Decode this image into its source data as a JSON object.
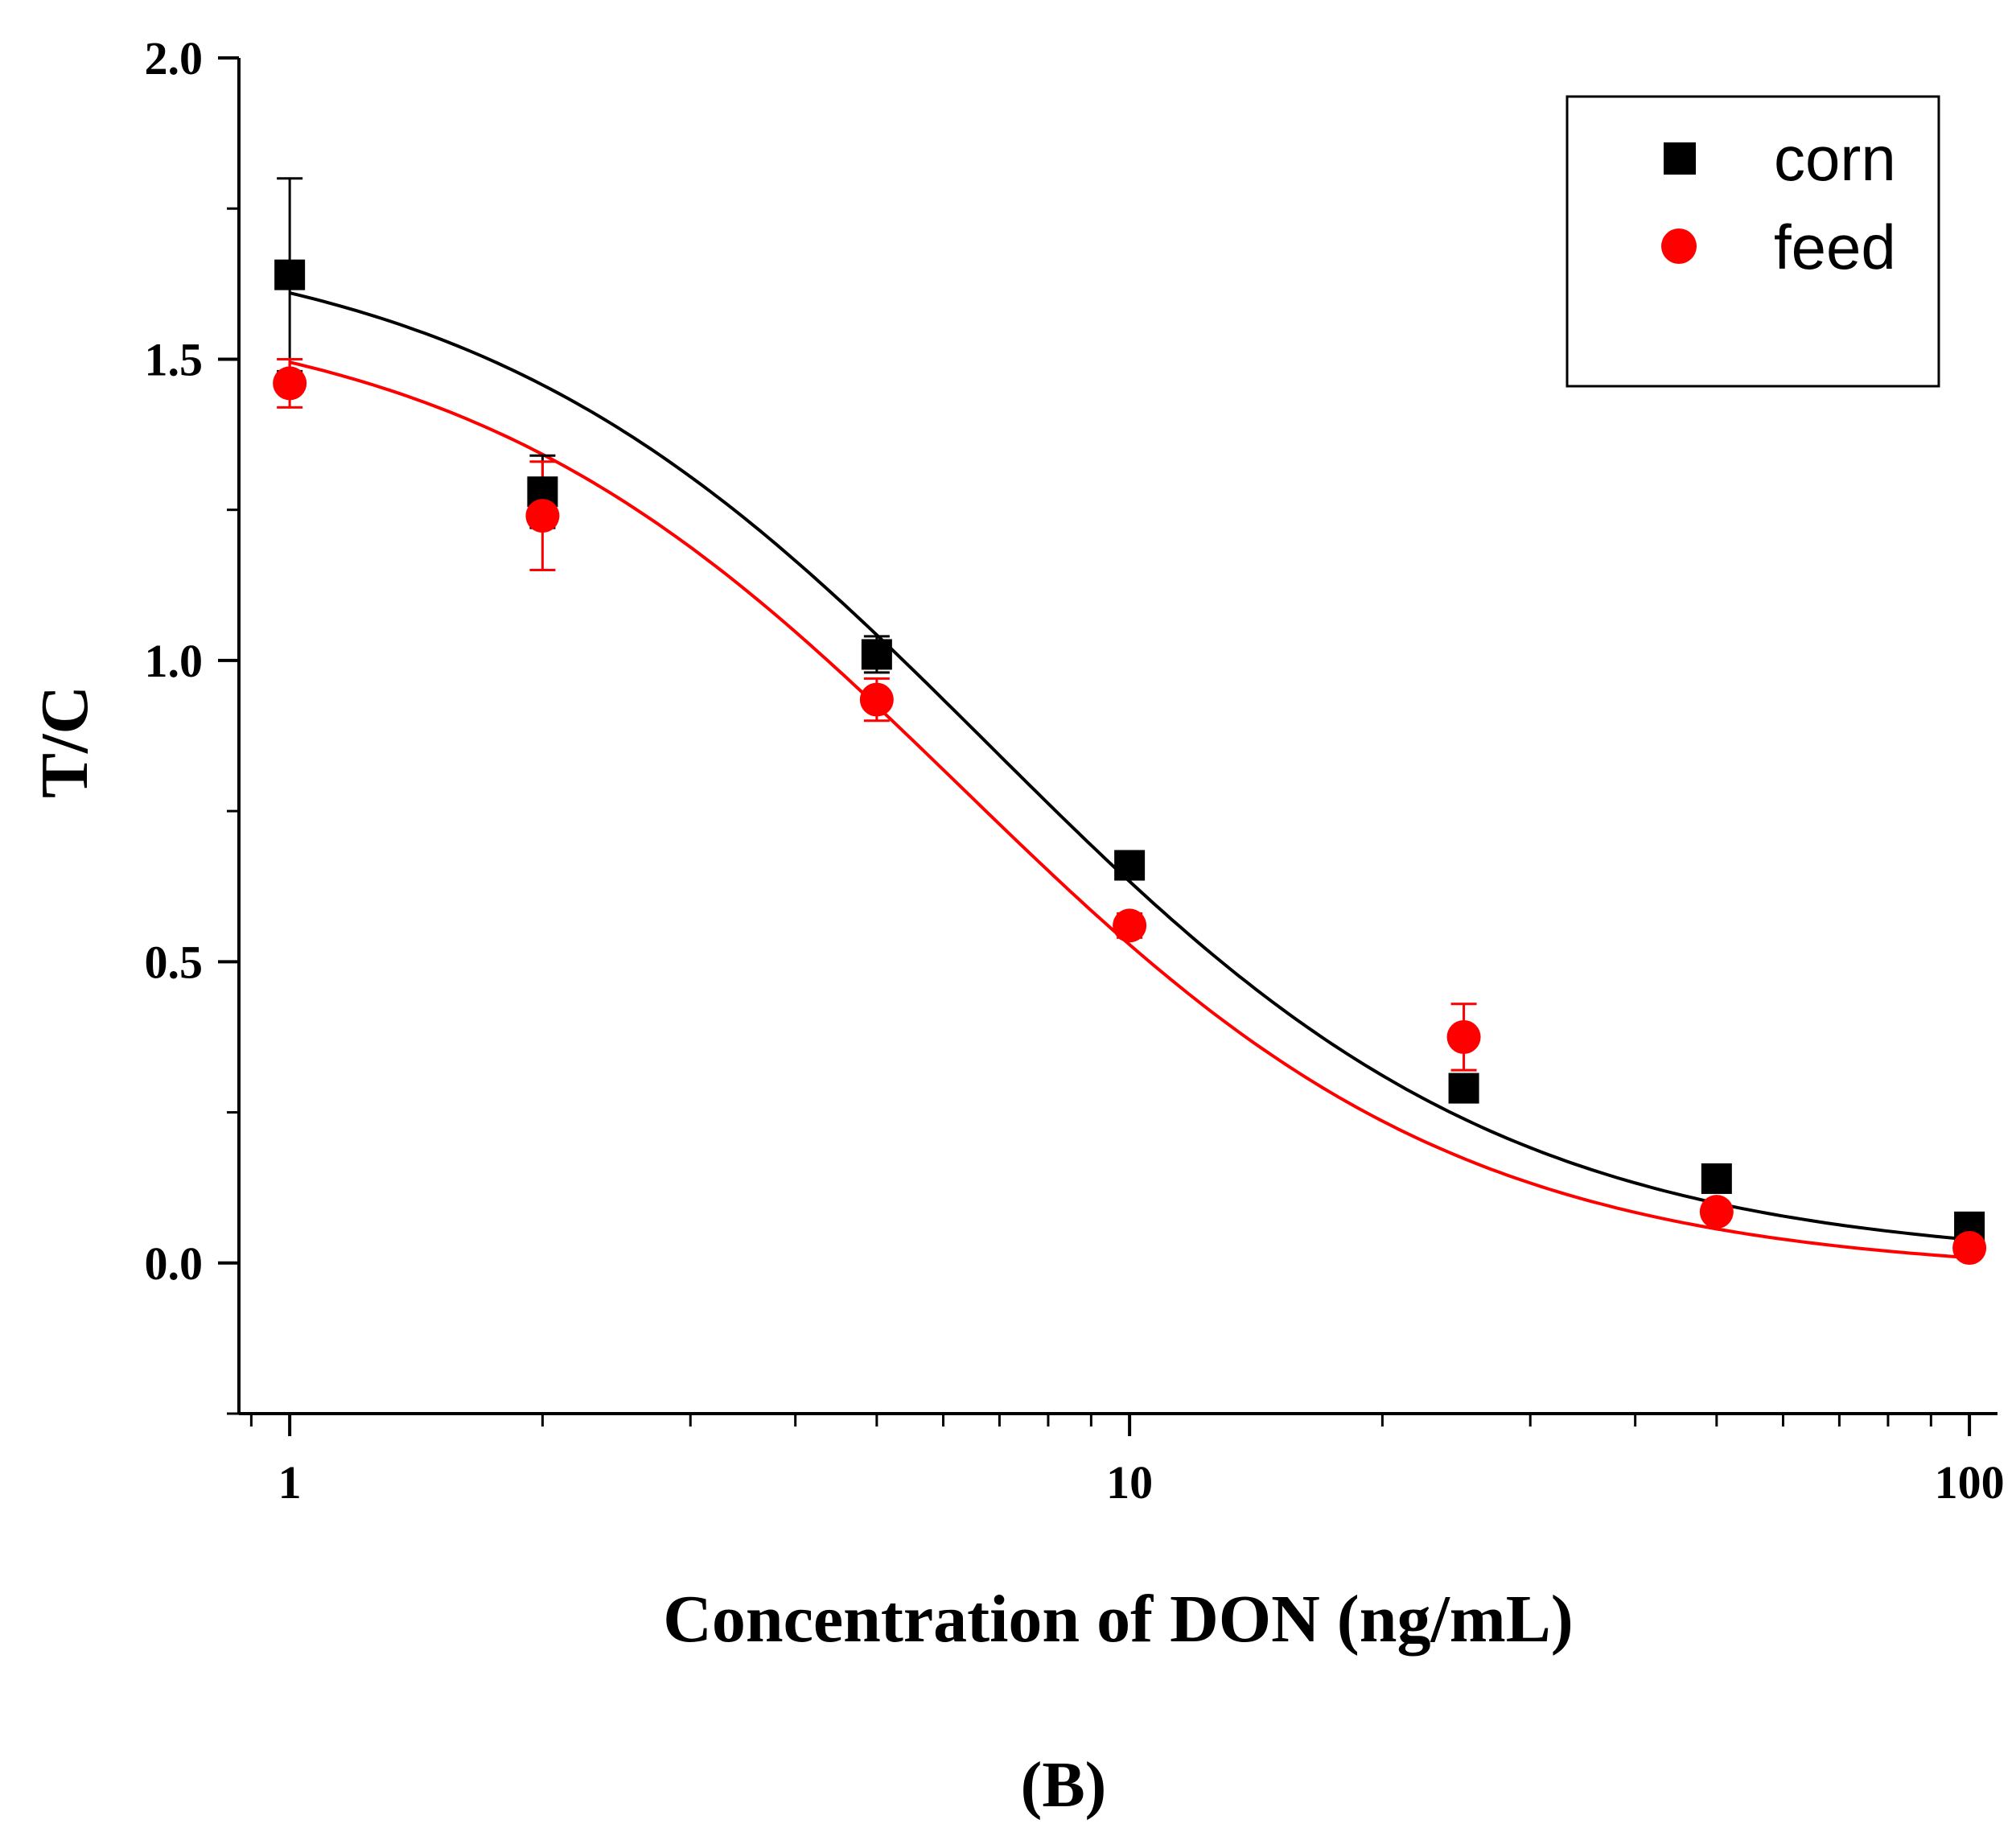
{
  "chart_data": {
    "type": "scatter",
    "title": "",
    "panel_label": "(B)",
    "xlabel": "Concentration of DON (ng/mL)",
    "ylabel": "T/C",
    "xscale": "log",
    "xlim": [
      0.87,
      108
    ],
    "ylim": [
      -0.25,
      2.0
    ],
    "x_ticks": [
      1,
      10,
      100
    ],
    "x_tick_labels": [
      "1",
      "10",
      "100"
    ],
    "y_ticks": [
      0.0,
      0.5,
      1.0,
      1.5,
      2.0
    ],
    "y_tick_labels": [
      "0.0",
      "0.5",
      "1.0",
      "1.5",
      "2.0"
    ],
    "y_minor_ticks": [
      -0.25,
      0.25,
      0.75,
      1.25,
      1.75
    ],
    "legend_position": "top-right",
    "series": [
      {
        "name": "corn",
        "color": "#000000",
        "marker": "square",
        "x": [
          1,
          2,
          5,
          10,
          25,
          50,
          100
        ],
        "y": [
          1.64,
          1.28,
          1.01,
          0.66,
          0.29,
          0.14,
          0.06
        ],
        "error": [
          0.16,
          0.06,
          0.03,
          0.02,
          0.02,
          0.01,
          0.01
        ],
        "fit": {
          "model": "logistic",
          "A1": 1.72,
          "A2": 0.0,
          "x0": 6.8,
          "p": 1.4
        }
      },
      {
        "name": "feed",
        "color": "#ff0000",
        "marker": "circle",
        "x": [
          1,
          2,
          5,
          10,
          25,
          50,
          100
        ],
        "y": [
          1.46,
          1.24,
          0.935,
          0.56,
          0.375,
          0.085,
          0.025
        ],
        "error": [
          0.04,
          0.09,
          0.035,
          0.02,
          0.055,
          0.01,
          0.01
        ],
        "fit": {
          "model": "logistic",
          "A1": 1.6,
          "A2": -0.02,
          "x0": 6.3,
          "p": 1.45
        }
      }
    ]
  }
}
